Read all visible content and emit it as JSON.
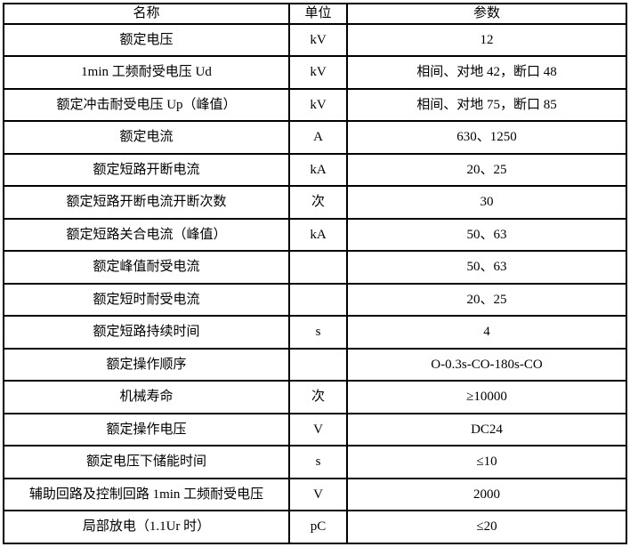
{
  "table": {
    "background_color": "#ffffff",
    "border_color": "#000000",
    "text_color": "#000000",
    "headers": [
      "名称",
      "单位",
      "参数"
    ],
    "rows": [
      {
        "name": "额定电压",
        "unit": "kV",
        "value": "12"
      },
      {
        "name": "1min 工频耐受电压 Ud",
        "unit": "kV",
        "value": "相间、对地 42，断口 48"
      },
      {
        "name": "额定冲击耐受电压 Up（峰值）",
        "unit": "kV",
        "value": "相间、对地 75，断口 85"
      },
      {
        "name": "额定电流",
        "unit": "A",
        "value": "630、1250"
      },
      {
        "name": "额定短路开断电流",
        "unit": "kA",
        "value": "20、25"
      },
      {
        "name": "额定短路开断电流开断次数",
        "unit": "次",
        "value": "30"
      },
      {
        "name": "额定短路关合电流（峰值）",
        "unit": "kA",
        "value": "50、63"
      },
      {
        "name": "额定峰值耐受电流",
        "unit": "",
        "value": "50、63"
      },
      {
        "name": "额定短时耐受电流",
        "unit": "",
        "value": "20、25"
      },
      {
        "name": "额定短路持续时间",
        "unit": "s",
        "value": "4"
      },
      {
        "name": "额定操作顺序",
        "unit": "",
        "value": "O-0.3s-CO-180s-CO"
      },
      {
        "name": "机械寿命",
        "unit": "次",
        "value": "≥10000"
      },
      {
        "name": "额定操作电压",
        "unit": "V",
        "value": "DC24"
      },
      {
        "name": "额定电压下储能时间",
        "unit": "s",
        "value": "≤10"
      },
      {
        "name": "辅助回路及控制回路 1min 工频耐受电压",
        "unit": "V",
        "value": "2000"
      },
      {
        "name": "局部放电（1.1Ur 时）",
        "unit": "pC",
        "value": "≤20"
      }
    ]
  }
}
